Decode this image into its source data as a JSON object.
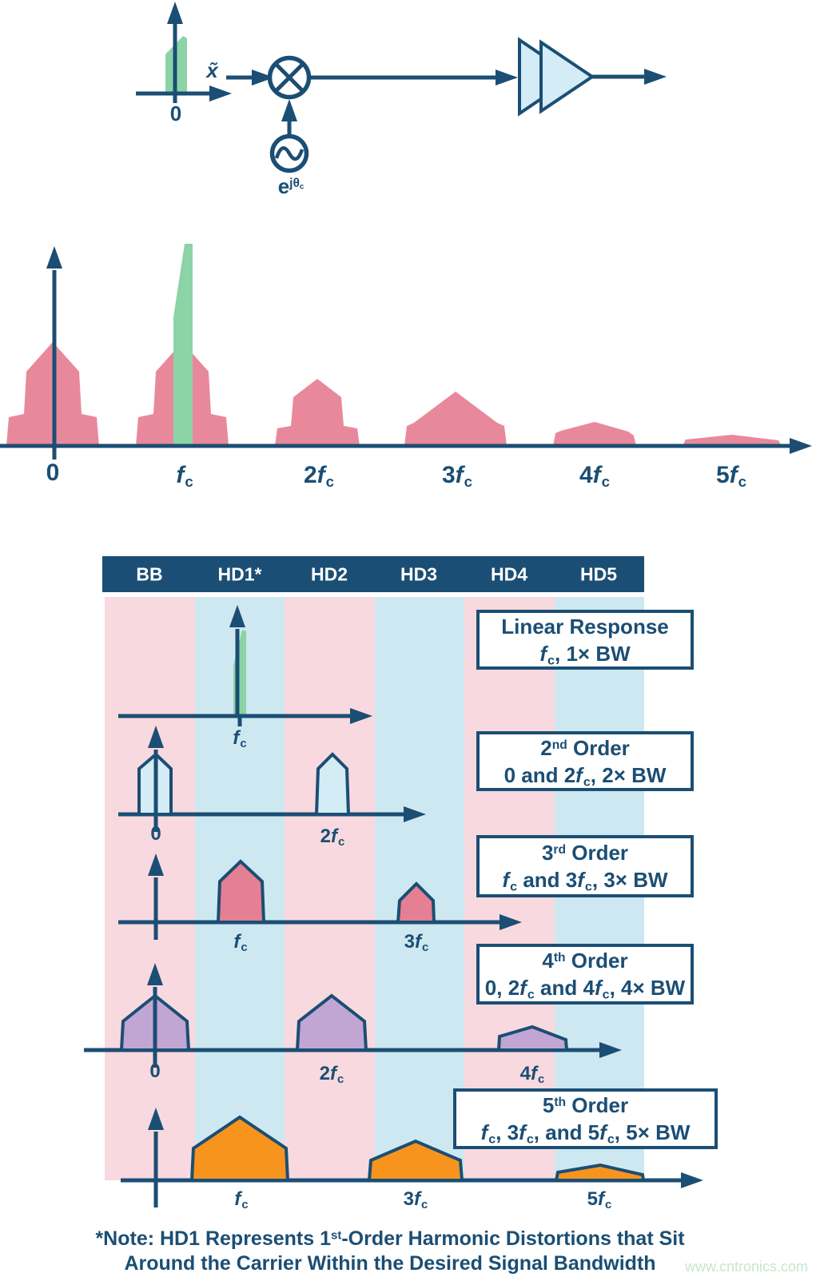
{
  "palette": {
    "navy": "#1B4E74",
    "spectrum-pink": "#E8899B",
    "stripe-pink": "#F8D9DF",
    "stripe-blue": "#CEE8F1",
    "green": "#8CD3A5",
    "light-blue": "#D4ECF5",
    "coral": "#E57F93",
    "purple": "#C1A6D3",
    "orange": "#F7941E",
    "watermark-green": "#C7E6CF"
  },
  "top_diagram": {
    "input_label": "x̃",
    "origin_label": "0",
    "oscillator_label": "e^jθ~c~^"
  },
  "middle_spectrum": {
    "type": "area",
    "x_tick_labels": [
      "0",
      "f_c",
      "2f_c",
      "3f_c",
      "4f_c",
      "5f_c"
    ],
    "relative_amplitudes": [
      1.0,
      1.0,
      0.64,
      0.52,
      0.23,
      0.11
    ],
    "carrier_spike": "narrow green desired-signal spike at f_c"
  },
  "header": {
    "cells": [
      "BB",
      "HD1*",
      "HD2",
      "HD3",
      "HD4",
      "HD5"
    ]
  },
  "rows": [
    {
      "name": "linear",
      "box_line1": "Linear Response",
      "box_line2": "f_c, 1× BW",
      "labels": [
        "f_c"
      ]
    },
    {
      "name": "order2",
      "box_line1": "2^nd^ Order",
      "box_line2": "0 and 2f_c, 2× BW",
      "labels": [
        "0",
        "2f_c"
      ]
    },
    {
      "name": "order3",
      "box_line1": "3^rd^ Order",
      "box_line2": "f_c and 3f_c, 3× BW",
      "labels": [
        "f_c",
        "3f_c"
      ]
    },
    {
      "name": "order4",
      "box_line1": "4^th^ Order",
      "box_line2": "0, 2f_c and 4f_c, 4× BW",
      "labels": [
        "0",
        "2f_c",
        "4f_c"
      ]
    },
    {
      "name": "order5",
      "box_line1": "5^th^ Order",
      "box_line2": "f_c, 3f_c, and 5f_c, 5× BW",
      "labels": [
        "f_c",
        "3f_c",
        "5f_c"
      ]
    }
  ],
  "note": {
    "line1": "*Note: HD1 Represents 1^st^-Order Harmonic Distortions that Sit",
    "line2": "Around the Carrier Within the Desired Signal Bandwidth"
  },
  "watermark": "www.cntronics.com"
}
